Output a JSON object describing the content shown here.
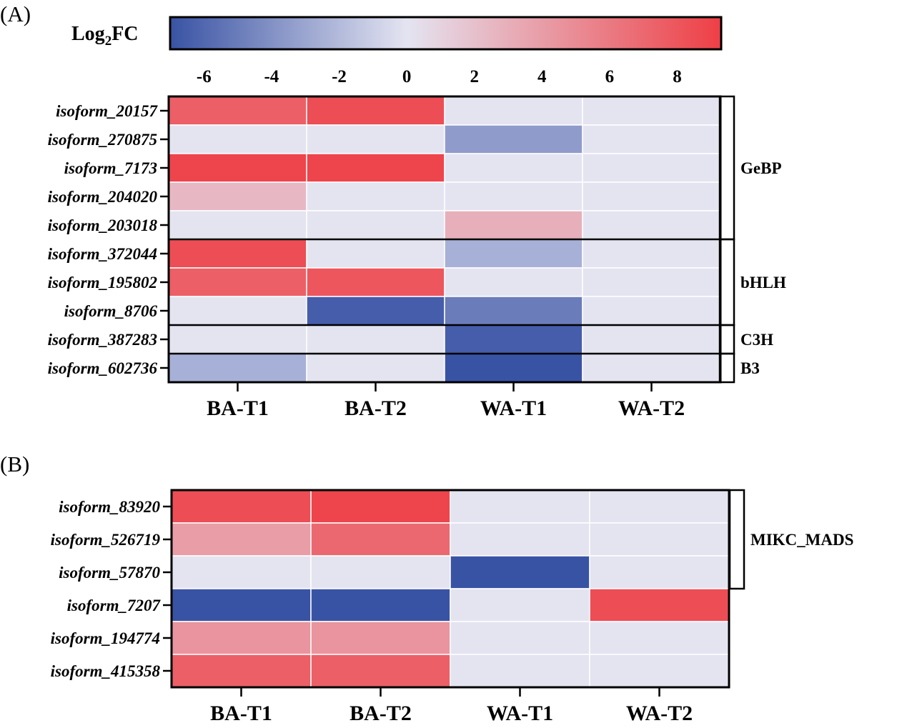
{
  "colorbar": {
    "title": "Log",
    "title_sub": "2",
    "title_suffix": "FC",
    "range": [
      -7,
      9.3
    ],
    "ticks": [
      "-6",
      "-4",
      "-2",
      "0",
      "2",
      "4",
      "6",
      "8"
    ],
    "tick_values": [
      -6,
      -4,
      -2,
      0,
      2,
      4,
      6,
      8
    ],
    "colors": {
      "low": "#3953a4",
      "mid": "#e4e4f1",
      "high": "#ee3f45",
      "border": "#000000"
    }
  },
  "chart_data": [
    {
      "type": "heatmap",
      "panel_label": "(A)",
      "title": "",
      "categories": [
        "BA-T1",
        "BA-T2",
        "WA-T1",
        "WA-T2"
      ],
      "rows": [
        "isoform_20157",
        "isoform_270875",
        "isoform_7173",
        "isoform_204020",
        "isoform_203018",
        "isoform_372044",
        "isoform_195802",
        "isoform_8706",
        "isoform_387283",
        "isoform_602736"
      ],
      "values": [
        [
          7.5,
          8.5,
          0,
          0
        ],
        [
          0,
          0,
          -3.5,
          0
        ],
        [
          9,
          9,
          0,
          0
        ],
        [
          2.5,
          0,
          0,
          0
        ],
        [
          0,
          0,
          3,
          0
        ],
        [
          8.5,
          0,
          -2.5,
          0
        ],
        [
          7.5,
          8,
          0,
          0
        ],
        [
          0,
          -6.5,
          -5,
          0
        ],
        [
          0,
          0,
          -6.5,
          0
        ],
        [
          -2.5,
          0,
          -7,
          0
        ]
      ],
      "groups": [
        {
          "name": "GeBP",
          "start": 0,
          "end": 4
        },
        {
          "name": "bHLH",
          "start": 5,
          "end": 7
        },
        {
          "name": "C3H",
          "start": 8,
          "end": 8
        },
        {
          "name": "B3",
          "start": 9,
          "end": 9
        }
      ]
    },
    {
      "type": "heatmap",
      "panel_label": "(B)",
      "title": "",
      "categories": [
        "BA-T1",
        "BA-T2",
        "WA-T1",
        "WA-T2"
      ],
      "rows": [
        "isoform_83920",
        "isoform_526719",
        "isoform_57870",
        "isoform_7207",
        "isoform_194774",
        "isoform_415358"
      ],
      "values": [
        [
          8.5,
          9,
          0,
          0
        ],
        [
          4,
          7,
          0,
          0
        ],
        [
          0,
          0,
          -7,
          0
        ],
        [
          -7,
          -7,
          0,
          8.5
        ],
        [
          4.5,
          4.5,
          0,
          0
        ],
        [
          7.5,
          7.5,
          0,
          0
        ]
      ],
      "groups": [
        {
          "name": "MIKC_MADS",
          "start": 0,
          "end": 2
        }
      ]
    }
  ]
}
